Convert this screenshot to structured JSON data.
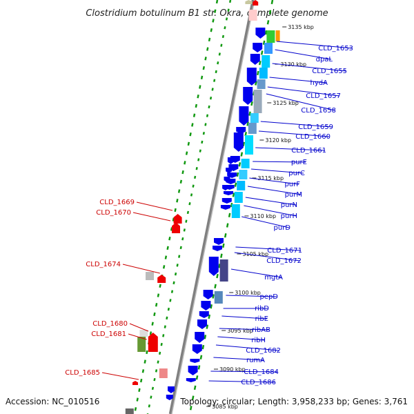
{
  "title": "Clostridium botulinum B1 str. Okra, complete genome",
  "accession": "Accession: NC_010516",
  "topology": "Topology: circular; Length: 3,958,233 bp; Genes: 3,761",
  "colors": {
    "forward_gene": "#0000ee",
    "reverse_gene": "#ee0000",
    "right_label": "#0000cc",
    "left_label": "#cc0000",
    "backbone": "#808080",
    "dots": "#119911"
  },
  "ticks": [
    "3135 kbp",
    "3130 kbp",
    "3125 kbp",
    "3120 kbp",
    "3115 kbp",
    "3110 kbp",
    "3105 kbp",
    "3100 kbp",
    "3095 kbp",
    "3090 kbp",
    "3085 kbp"
  ],
  "right_labels": [
    "CLD_1653",
    "dpaL",
    "CLD_1655",
    "hydA",
    "CLD_1657",
    "CLD_1658",
    "CLD_1659",
    "CLD_1660",
    "CLD_1661",
    "purE",
    "purC",
    "purF",
    "purM",
    "purN",
    "purH",
    "purD",
    "CLD_1671",
    "CLD_1672",
    "mgtA",
    "pepD",
    "ribD",
    "ribE",
    "ribAB",
    "ribH",
    "CLD_1682",
    "rumA",
    "CLD_1684",
    "CLD_1686"
  ],
  "left_labels": [
    "CLD_1669",
    "CLD_1670",
    "CLD_1674",
    "CLD_1680",
    "CLD_1681",
    "CLD_1685"
  ]
}
